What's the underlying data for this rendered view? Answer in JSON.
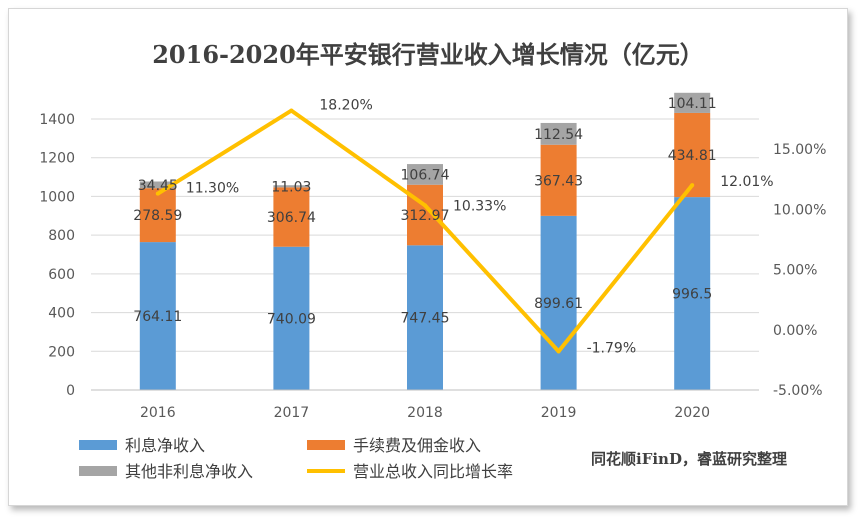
{
  "chart_data": {
    "type": "bar",
    "stacked": true,
    "title": "2016-2020年平安银行营业收入增长情况（亿元）",
    "categories": [
      "2016",
      "2017",
      "2018",
      "2019",
      "2020"
    ],
    "series": [
      {
        "name": "利息净收入",
        "color": "#5b9bd5",
        "values": [
          764.11,
          740.09,
          747.45,
          899.61,
          996.5
        ],
        "labels": [
          "764.11",
          "740.09",
          "747.45",
          "899.61",
          "996.5"
        ]
      },
      {
        "name": "手续费及佣金收入",
        "color": "#ed7d31",
        "values": [
          278.59,
          306.74,
          312.97,
          367.43,
          434.81
        ],
        "labels": [
          "278.59",
          "306.74",
          "312.97",
          "367.43",
          "434.81"
        ]
      },
      {
        "name": "其他非利息净收入",
        "color": "#a5a5a5",
        "values": [
          34.45,
          11.03,
          106.74,
          112.54,
          104.11
        ],
        "labels": [
          "34.45",
          "11.03",
          "106.74",
          "112.54",
          "104.11"
        ]
      }
    ],
    "line": {
      "name": "营业总收入同比增长率",
      "color": "#ffc000",
      "values": [
        11.3,
        18.2,
        10.33,
        -1.79,
        12.01
      ],
      "labels": [
        "11.30%",
        "18.20%",
        "10.33%",
        "-1.79%",
        "12.01%"
      ]
    },
    "y_left": {
      "min": 0,
      "max": 1400,
      "step": 200,
      "ticks": [
        "0",
        "200",
        "400",
        "600",
        "800",
        "1000",
        "1200",
        "1400"
      ]
    },
    "y_right": {
      "min": -5,
      "max": 17.5,
      "ticks": [
        "-5.00%",
        "0.00%",
        "5.00%",
        "10.00%",
        "15.00%"
      ],
      "tick_values": [
        -5,
        0,
        5,
        10,
        15
      ]
    },
    "legend_position": "bottom",
    "source_note": "同花顺iFinD，睿蓝研究整理"
  }
}
